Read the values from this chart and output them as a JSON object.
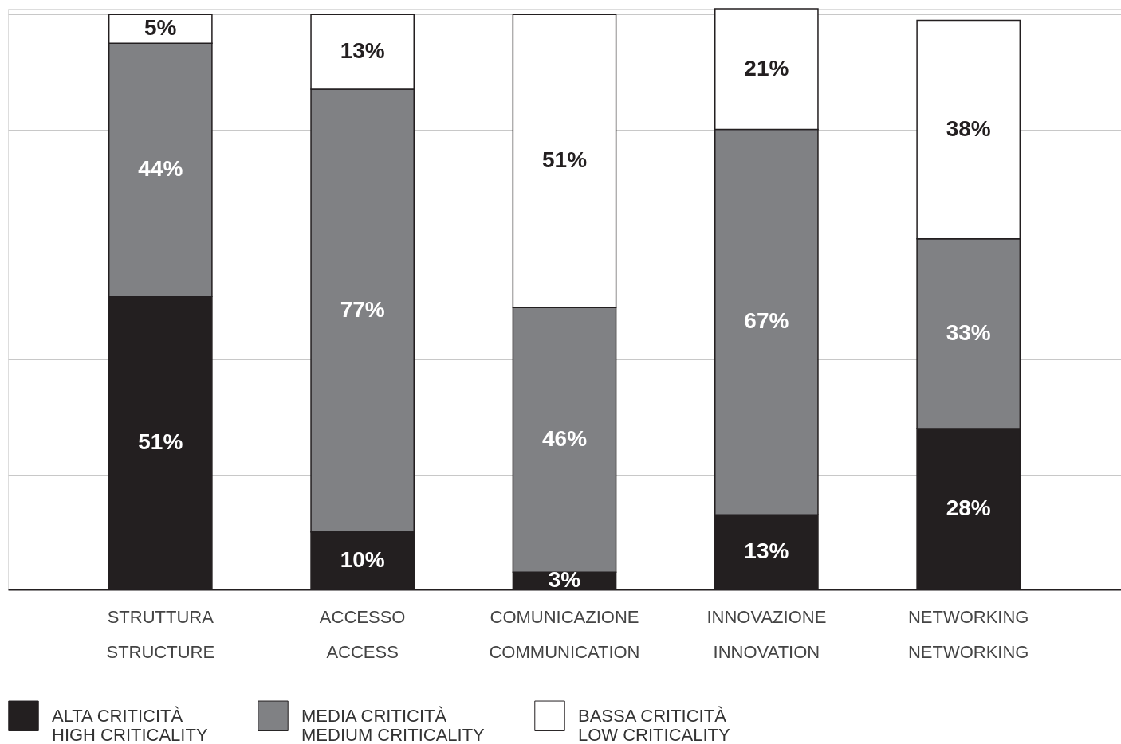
{
  "chart_data": {
    "type": "bar",
    "stacked": true,
    "grid": "y",
    "legend": "bottom",
    "tick_labels": "x",
    "categories": [
      "STRUTTURA\nSTRUCTURE",
      "ACCESSO\nACCESS",
      "COMUNICAZIONE\nCOMMUNICATION",
      "INNOVAZIONE\nINNOVATION",
      "NETWORKING\nNETWORKING"
    ],
    "series": [
      {
        "name": "ALTA CRITICITÀ\nHIGH CRITICALITY",
        "color": "#231f20",
        "values": [
          51,
          10,
          3,
          13,
          28
        ],
        "value_labels": [
          "51%",
          "10%",
          "3%",
          "13%",
          "28%"
        ]
      },
      {
        "name": "MEDIA CRITICITÀ\nMEDIUM CRITICALITY",
        "color": "#808184",
        "values": [
          44,
          77,
          46,
          67,
          33
        ],
        "value_labels": [
          "44%",
          "77%",
          "46%",
          "67%",
          "33%"
        ]
      },
      {
        "name": "BASSA CRITICITÀ\nLOW CRITICALITY",
        "color": "#ffffff",
        "values": [
          5,
          13,
          51,
          21,
          38
        ],
        "value_labels": [
          "5%",
          "13%",
          "51%",
          "21%",
          "38%"
        ]
      }
    ]
  }
}
